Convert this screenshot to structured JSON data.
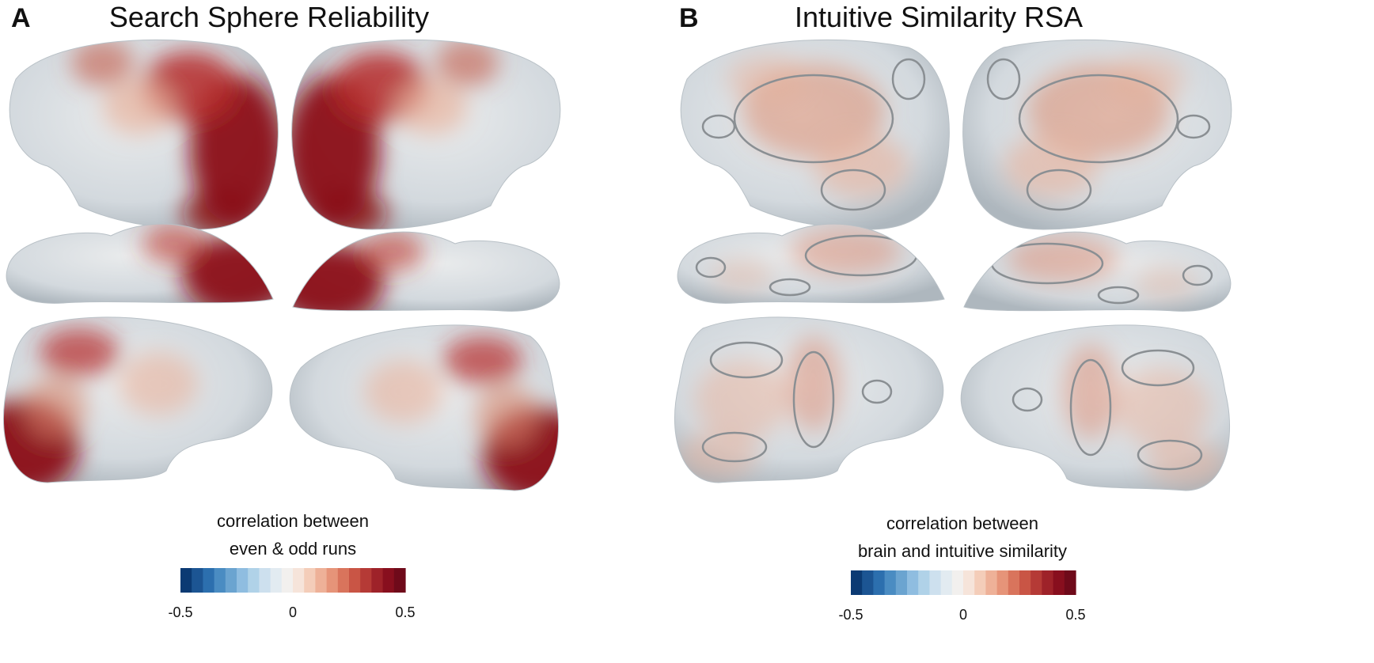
{
  "panels": [
    {
      "label": "A",
      "title": "Search Sphere Reliability",
      "colorbar": {
        "label": [
          "correlation between",
          "even & odd runs"
        ],
        "lim": [
          -0.5,
          0.5
        ],
        "ticks": [
          -0.5,
          0,
          0.5
        ],
        "colors": [
          "#0b3a73",
          "#1c5593",
          "#2c6fae",
          "#4a8cc2",
          "#6ba4d0",
          "#8fbde0",
          "#b0d2e8",
          "#cde0ee",
          "#e2ebf1",
          "#f2f0ee",
          "#f6e4da",
          "#f4cdb9",
          "#eeb198",
          "#e69479",
          "#d9745c",
          "#c95545",
          "#b53a36",
          "#9e2229",
          "#880f1e",
          "#6f0a1a"
        ]
      }
    },
    {
      "label": "B",
      "title": "Intuitive Similarity RSA",
      "colorbar": {
        "label": [
          "correlation between",
          "brain and intuitive similarity"
        ],
        "lim": [
          -0.5,
          0.5
        ],
        "ticks": [
          -0.5,
          0,
          0.5
        ],
        "colors": [
          "#0b3a73",
          "#1c5593",
          "#2c6fae",
          "#4a8cc2",
          "#6ba4d0",
          "#8fbde0",
          "#b0d2e8",
          "#cde0ee",
          "#e2ebf1",
          "#f2f0ee",
          "#f6e4da",
          "#f4cdb9",
          "#eeb198",
          "#e69479",
          "#d9745c",
          "#c95545",
          "#b53a36",
          "#9e2229",
          "#880f1e",
          "#6f0a1a"
        ]
      }
    }
  ]
}
